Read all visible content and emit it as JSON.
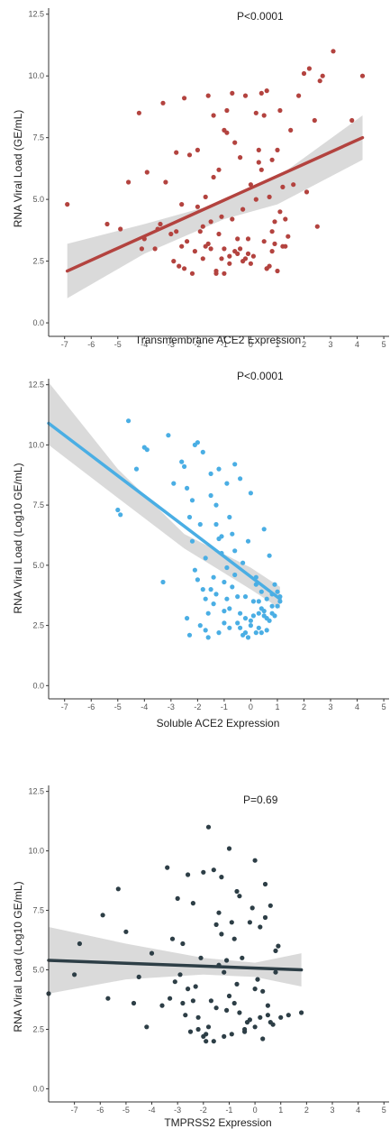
{
  "charts": [
    {
      "type": "scatter",
      "title": "",
      "annotation": "P<0.0001",
      "xlabel": "Transmembrane ACE2 Expression",
      "ylabel": "RNA Viral Load (GE/mL)",
      "xlim": [
        -7.6,
        5.2
      ],
      "ylim": [
        -0.4,
        12.6
      ],
      "xticks": [
        "-7",
        "-6",
        "-5",
        "-4",
        "-3",
        "-2",
        "-1",
        "0",
        "1",
        "2",
        "3",
        "4",
        "5"
      ],
      "yticks": [
        "0.0",
        "2.5",
        "5.0",
        "7.5",
        "10.0",
        "12.5"
      ],
      "grid": false,
      "point_color": "#b3433f",
      "line_color": "#b3433f",
      "band_color": "#d3d3d3",
      "fit": {
        "x": [
          -6.9,
          4.2
        ],
        "y": [
          2.1,
          7.5
        ]
      },
      "band": {
        "x": [
          -6.9,
          -4.0,
          -1.0,
          1.0,
          4.2
        ],
        "lower": [
          1.0,
          2.8,
          4.2,
          4.8,
          6.6
        ],
        "upper": [
          3.2,
          4.0,
          4.9,
          5.9,
          8.4
        ]
      },
      "points": {
        "x": [
          -6.9,
          -5.4,
          -4.9,
          -4.6,
          -4.2,
          -4.1,
          -4.0,
          -3.9,
          -3.6,
          -3.5,
          -3.4,
          -3.2,
          -3.0,
          -2.9,
          -2.8,
          -2.6,
          -2.5,
          -2.4,
          -2.2,
          -2.0,
          -1.8,
          -1.7,
          -1.6,
          -1.5,
          -1.4,
          -1.3,
          -1.2,
          -1.1,
          -1.0,
          -0.9,
          -0.8,
          -0.7,
          -0.6,
          -0.5,
          -0.4,
          -0.3,
          -0.2,
          -0.1,
          0.1,
          0.3,
          0.4,
          0.5,
          0.6,
          0.7,
          0.8,
          0.9,
          1.0,
          1.1,
          1.2,
          1.3,
          1.5,
          1.8,
          2.0,
          2.2,
          2.4,
          2.5,
          2.7,
          3.1,
          3.8,
          4.2,
          -2.7,
          -2.1,
          -1.9,
          -1.6,
          -1.3,
          -1.0,
          -0.8,
          -0.6,
          -0.3,
          0.0,
          0.2,
          0.5,
          0.8,
          1.1,
          1.4,
          -2.3,
          -1.7,
          -1.2,
          -0.7,
          -0.2,
          0.3,
          0.7,
          -3.3,
          -2.8,
          -1.5,
          -0.5,
          0.4,
          0.9,
          1.6,
          2.1,
          -1.8,
          -1.1,
          -0.4,
          0.6,
          1.2,
          -2.5,
          -0.9,
          0.2,
          1.0,
          2.6,
          -2.0,
          -0.1,
          0.8,
          -1.4,
          0.0,
          1.3,
          -2.6,
          -1.0,
          0.6
        ],
        "y": [
          4.8,
          4.0,
          3.8,
          5.7,
          8.5,
          3.0,
          3.4,
          6.1,
          3.0,
          3.8,
          4.0,
          5.7,
          3.6,
          2.5,
          3.7,
          4.8,
          2.2,
          3.3,
          2.0,
          4.7,
          2.6,
          3.1,
          9.2,
          4.1,
          5.9,
          2.0,
          3.6,
          2.6,
          7.8,
          8.6,
          2.4,
          9.3,
          2.9,
          3.4,
          6.7,
          4.6,
          2.6,
          3.4,
          2.7,
          7.0,
          9.3,
          8.4,
          2.2,
          2.3,
          2.9,
          3.2,
          7.0,
          4.5,
          5.5,
          3.1,
          7.8,
          9.2,
          10.1,
          10.3,
          8.2,
          3.9,
          10.0,
          11.0,
          8.2,
          10.0,
          2.3,
          2.9,
          3.7,
          3.2,
          2.1,
          3.0,
          2.7,
          7.3,
          2.5,
          2.4,
          8.5,
          3.3,
          6.6,
          8.6,
          3.5,
          6.8,
          5.1,
          6.2,
          4.2,
          9.2,
          6.5,
          5.1,
          8.9,
          6.9,
          3.0,
          2.8,
          6.2,
          4.1,
          5.6,
          5.3,
          3.9,
          4.3,
          3.0,
          2.2,
          3.1,
          9.1,
          7.7,
          5.0,
          2.1,
          9.8,
          7.0,
          2.8,
          3.7,
          8.4,
          5.6,
          4.2,
          3.1,
          2.0,
          9.4
        ]
      }
    },
    {
      "type": "scatter",
      "title": "",
      "annotation": "P<0.0001",
      "xlabel": "Soluble ACE2 Expression",
      "ylabel": "RNA Viral Load (Log10 GE/mL)",
      "xlim": [
        -7.6,
        5.2
      ],
      "ylim": [
        -0.4,
        12.6
      ],
      "xticks": [
        "-7",
        "-6",
        "-5",
        "-4",
        "-3",
        "-2",
        "-1",
        "0",
        "1",
        "2",
        "3",
        "4",
        "5"
      ],
      "yticks": [
        "0.0",
        "2.5",
        "5.0",
        "7.5",
        "10.0",
        "12.5"
      ],
      "grid": false,
      "point_color": "#4aaee4",
      "line_color": "#4aaee4",
      "band_color": "#d3d3d3",
      "fit": {
        "x": [
          -7.6,
          1.1
        ],
        "y": [
          10.9,
          3.6
        ]
      },
      "band": {
        "x": [
          -7.6,
          -5.0,
          -2.5,
          0.0,
          1.1
        ],
        "lower": [
          10.0,
          7.8,
          5.7,
          4.0,
          3.2
        ],
        "upper": [
          12.6,
          9.0,
          6.3,
          4.9,
          4.1
        ]
      },
      "points": {
        "x": [
          -4.6,
          -5.0,
          -4.9,
          -4.3,
          -4.0,
          -3.9,
          -3.3,
          -3.1,
          -2.9,
          -2.6,
          -2.5,
          -2.4,
          -2.3,
          -2.2,
          -2.1,
          -2.0,
          -1.9,
          -1.8,
          -1.7,
          -1.6,
          -1.5,
          -1.4,
          -1.3,
          -1.2,
          -1.1,
          -1.0,
          -0.9,
          -0.8,
          -0.7,
          -0.6,
          -0.5,
          -0.4,
          -0.3,
          -0.2,
          -0.1,
          0.0,
          0.1,
          0.2,
          0.3,
          0.4,
          0.5,
          0.6,
          0.7,
          0.8,
          0.9,
          1.0,
          1.1,
          -2.4,
          -2.2,
          -1.8,
          -1.5,
          -1.2,
          -0.9,
          -0.6,
          -0.3,
          0.0,
          0.3,
          0.6,
          0.9,
          -2.1,
          -1.7,
          -1.3,
          -1.0,
          -0.7,
          -0.4,
          -0.1,
          0.2,
          0.5,
          0.8,
          -1.9,
          -1.4,
          -0.8,
          -0.2,
          0.4,
          1.0,
          -1.6,
          -1.1,
          -0.5,
          0.1,
          0.7,
          -2.0,
          -1.3,
          -0.6,
          0.3,
          -1.7,
          -0.9,
          0.0,
          0.6,
          -1.2,
          -0.4,
          0.5,
          -1.5,
          -0.8,
          0.2,
          1.1,
          -2.3,
          -0.2,
          0.8,
          -1.0,
          0.4
        ],
        "y": [
          11.0,
          7.3,
          7.1,
          9.0,
          9.9,
          9.8,
          4.3,
          10.4,
          8.4,
          9.3,
          9.1,
          2.8,
          7.0,
          7.7,
          10.0,
          10.1,
          6.7,
          9.7,
          3.6,
          2.0,
          8.8,
          4.5,
          7.5,
          9.0,
          5.5,
          3.1,
          8.4,
          2.4,
          6.3,
          9.2,
          3.7,
          8.6,
          5.1,
          2.2,
          6.0,
          8.0,
          2.9,
          4.2,
          2.4,
          3.9,
          6.5,
          2.8,
          5.4,
          3.3,
          2.9,
          3.3,
          3.7,
          8.2,
          6.0,
          4.0,
          7.9,
          2.2,
          3.6,
          4.6,
          2.1,
          2.7,
          3.5,
          2.3,
          4.2,
          4.8,
          5.3,
          6.7,
          2.6,
          4.1,
          3.0,
          2.0,
          4.5,
          3.1,
          3.8,
          2.5,
          3.4,
          7.0,
          2.8,
          3.2,
          3.9,
          3.0,
          6.2,
          2.6,
          3.5,
          2.7,
          4.4,
          3.8,
          5.6,
          3.0,
          2.3,
          4.9,
          2.5,
          3.6,
          6.1,
          2.4,
          2.9,
          4.0,
          3.2,
          2.2,
          3.5,
          2.1,
          3.7,
          3.0,
          4.3,
          2.2
        ]
      }
    },
    {
      "type": "scatter",
      "title": "",
      "annotation": "P=0.69",
      "xlabel": "TMPRSS2 Expression",
      "ylabel": "RNA Viral Load (Log10 GE/mL)",
      "xlim": [
        -8.0,
        5.2
      ],
      "ylim": [
        -0.4,
        12.6
      ],
      "xticks": [
        "-7",
        "-6",
        "-5",
        "-4",
        "-3",
        "-2",
        "-1",
        "0",
        "1",
        "2",
        "3",
        "4",
        "5"
      ],
      "yticks": [
        "0.0",
        "2.5",
        "5.0",
        "7.5",
        "10.0",
        "12.5"
      ],
      "grid": false,
      "point_color": "#2d3e46",
      "line_color": "#2d3e46",
      "band_color": "#d3d3d3",
      "fit": {
        "x": [
          -8.0,
          1.8
        ],
        "y": [
          5.4,
          5.0
        ]
      },
      "band": {
        "x": [
          -8.0,
          -5.0,
          -2.0,
          0.0,
          1.8
        ],
        "lower": [
          4.0,
          4.6,
          4.8,
          4.7,
          4.3
        ],
        "upper": [
          6.8,
          6.1,
          5.5,
          5.3,
          5.7
        ]
      },
      "points": {
        "x": [
          -8.0,
          -7.0,
          -6.8,
          -5.9,
          -5.7,
          -5.3,
          -5.0,
          -4.7,
          -4.5,
          -4.2,
          -4.0,
          -3.6,
          -3.4,
          -3.2,
          -3.0,
          -2.8,
          -2.6,
          -2.4,
          -2.2,
          -2.0,
          -1.8,
          -1.6,
          -1.4,
          -1.2,
          -1.0,
          -0.8,
          -0.6,
          -0.4,
          -0.2,
          0.0,
          0.2,
          0.4,
          0.6,
          0.8,
          1.0,
          1.3,
          1.8,
          -2.9,
          -2.5,
          -2.1,
          -1.7,
          -1.3,
          -0.9,
          -0.5,
          -0.1,
          0.3,
          0.7,
          -2.7,
          -2.3,
          -1.9,
          -1.5,
          -1.1,
          -0.7,
          -0.3,
          0.1,
          0.5,
          0.9,
          -3.3,
          -2.0,
          -1.4,
          -0.8,
          -0.2,
          0.4,
          -2.6,
          -1.6,
          -1.0,
          0.0,
          0.6,
          -1.8,
          -1.2,
          -0.6,
          0.2,
          -3.1,
          -2.2,
          -0.4,
          0.8,
          -1.5,
          -0.9,
          0.3,
          -2.4,
          -1.1,
          0.5,
          -0.7,
          -1.9,
          0.0,
          -2.8,
          -1.3
        ],
        "y": [
          4.0,
          4.8,
          6.1,
          7.3,
          3.8,
          8.4,
          6.6,
          3.6,
          4.7,
          2.6,
          5.7,
          3.5,
          9.3,
          6.3,
          8.0,
          3.6,
          9.0,
          7.8,
          2.5,
          9.1,
          11.0,
          9.2,
          7.4,
          2.2,
          10.1,
          6.3,
          8.1,
          2.4,
          7.0,
          9.6,
          3.0,
          7.2,
          2.8,
          4.9,
          3.0,
          3.1,
          3.2,
          4.8,
          2.4,
          5.5,
          3.7,
          6.5,
          2.3,
          5.5,
          7.6,
          4.1,
          2.7,
          3.1,
          4.3,
          2.0,
          6.9,
          3.3,
          8.3,
          2.8,
          4.6,
          3.5,
          6.0,
          3.8,
          2.2,
          5.2,
          3.6,
          2.9,
          8.6,
          4.2,
          2.0,
          3.9,
          2.6,
          7.7,
          2.6,
          4.9,
          3.2,
          6.8,
          4.5,
          3.0,
          2.5,
          5.8,
          3.4,
          7.0,
          2.1,
          3.7,
          5.4,
          3.1,
          4.4,
          2.3,
          4.2,
          6.1,
          8.9
        ]
      }
    }
  ]
}
